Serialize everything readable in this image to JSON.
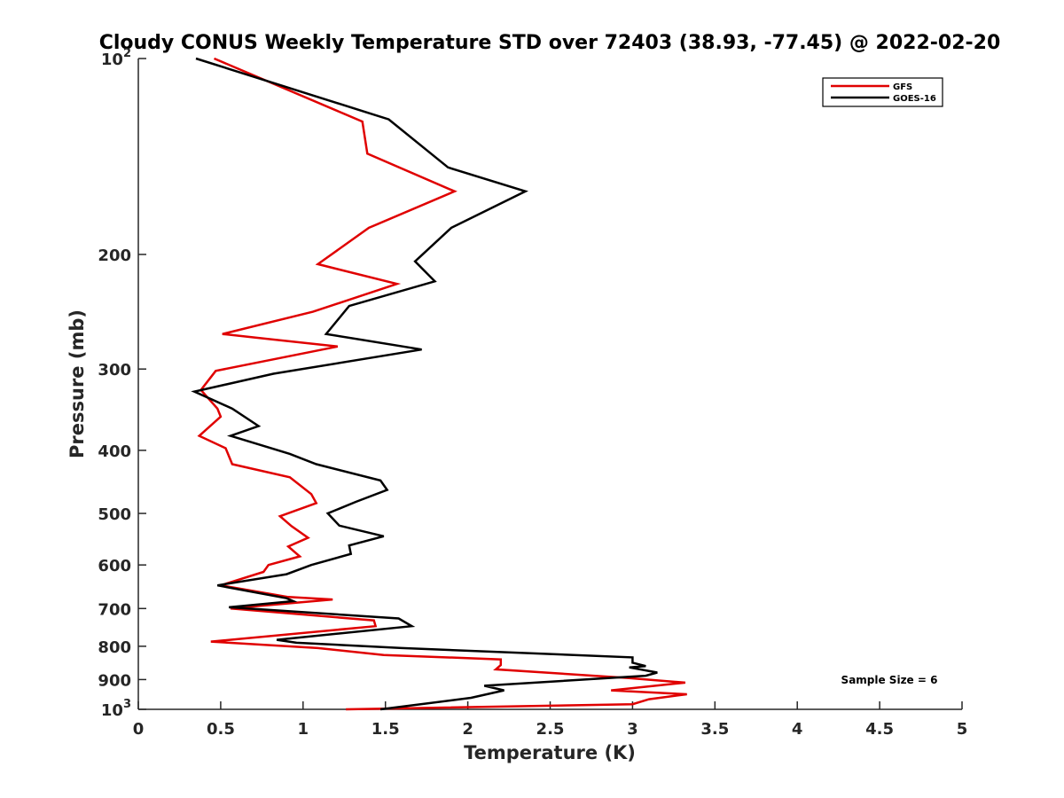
{
  "chart_data": {
    "type": "line",
    "title": "Cloudy CONUS Weekly Temperature STD over 72403 (38.93, -77.45) @ 2022-02-20",
    "xlabel": "Temperature (K)",
    "ylabel": "Pressure (mb)",
    "xlim": [
      0,
      5
    ],
    "ylim": [
      100,
      1000
    ],
    "yscale": "log",
    "y_reversed": true,
    "grid": false,
    "legend_position": "top-right",
    "x_ticks": [
      "0",
      "0.5",
      "1",
      "1.5",
      "2",
      "2.5",
      "3",
      "3.5",
      "4",
      "4.5",
      "5"
    ],
    "y_ticks": [
      {
        "value": 200,
        "label": "200"
      },
      {
        "value": 300,
        "label": "300"
      },
      {
        "value": 400,
        "label": "400"
      },
      {
        "value": 500,
        "label": "500"
      },
      {
        "value": 600,
        "label": "600"
      },
      {
        "value": 700,
        "label": "700"
      },
      {
        "value": 800,
        "label": "800"
      },
      {
        "value": 900,
        "label": "900"
      }
    ],
    "y_ticks_power": [
      {
        "value": 100,
        "base": "10",
        "exp": "2"
      },
      {
        "value": 1000,
        "base": "10",
        "exp": "3"
      }
    ],
    "annotation": "Sample Size = 6",
    "series": [
      {
        "name": "GFS",
        "color": "#e00000",
        "points": [
          [
            0.46,
            100
          ],
          [
            1.36,
            125
          ],
          [
            1.39,
            140
          ],
          [
            1.92,
            160
          ],
          [
            1.4,
            182
          ],
          [
            1.09,
            207
          ],
          [
            1.57,
            222
          ],
          [
            1.06,
            245
          ],
          [
            0.51,
            265
          ],
          [
            1.21,
            277
          ],
          [
            0.47,
            302
          ],
          [
            0.38,
            323
          ],
          [
            0.48,
            345
          ],
          [
            0.5,
            355
          ],
          [
            0.37,
            380
          ],
          [
            0.53,
            397
          ],
          [
            0.57,
            420
          ],
          [
            0.92,
            440
          ],
          [
            1.05,
            467
          ],
          [
            1.08,
            482
          ],
          [
            0.86,
            505
          ],
          [
            0.93,
            523
          ],
          [
            1.03,
            545
          ],
          [
            0.91,
            562
          ],
          [
            0.98,
            582
          ],
          [
            0.79,
            600
          ],
          [
            0.76,
            615
          ],
          [
            0.5,
            645
          ],
          [
            0.91,
            672
          ],
          [
            1.18,
            678
          ],
          [
            0.56,
            700
          ],
          [
            1.43,
            730
          ],
          [
            1.44,
            745
          ],
          [
            0.44,
            787
          ],
          [
            1.09,
            805
          ],
          [
            1.49,
            825
          ],
          [
            2.2,
            838
          ],
          [
            2.2,
            855
          ],
          [
            2.17,
            868
          ],
          [
            2.97,
            895
          ],
          [
            3.32,
            910
          ],
          [
            2.87,
            935
          ],
          [
            3.33,
            948
          ],
          [
            3.1,
            965
          ],
          [
            3.0,
            982
          ],
          [
            1.26,
            1000
          ]
        ]
      },
      {
        "name": "GOES-16",
        "color": "#000000",
        "points": [
          [
            0.35,
            100
          ],
          [
            1.52,
            124
          ],
          [
            1.88,
            147
          ],
          [
            2.35,
            160
          ],
          [
            1.9,
            182
          ],
          [
            1.68,
            205
          ],
          [
            1.8,
            220
          ],
          [
            1.28,
            240
          ],
          [
            1.14,
            265
          ],
          [
            1.72,
            280
          ],
          [
            0.82,
            305
          ],
          [
            0.34,
            325
          ],
          [
            0.57,
            345
          ],
          [
            0.73,
            367
          ],
          [
            0.56,
            380
          ],
          [
            0.92,
            405
          ],
          [
            1.08,
            420
          ],
          [
            1.47,
            445
          ],
          [
            1.51,
            460
          ],
          [
            1.32,
            480
          ],
          [
            1.15,
            500
          ],
          [
            1.22,
            522
          ],
          [
            1.49,
            542
          ],
          [
            1.28,
            560
          ],
          [
            1.29,
            577
          ],
          [
            1.05,
            600
          ],
          [
            0.9,
            620
          ],
          [
            0.48,
            645
          ],
          [
            0.9,
            675
          ],
          [
            0.94,
            682
          ],
          [
            0.55,
            697
          ],
          [
            1.58,
            725
          ],
          [
            1.66,
            745
          ],
          [
            0.84,
            782
          ],
          [
            0.96,
            790
          ],
          [
            1.6,
            805
          ],
          [
            3.0,
            832
          ],
          [
            3.0,
            848
          ],
          [
            3.08,
            858
          ],
          [
            2.98,
            862
          ],
          [
            3.15,
            878
          ],
          [
            3.08,
            888
          ],
          [
            2.1,
            920
          ],
          [
            2.22,
            935
          ],
          [
            2.02,
            960
          ],
          [
            1.47,
            1000
          ]
        ]
      }
    ]
  }
}
